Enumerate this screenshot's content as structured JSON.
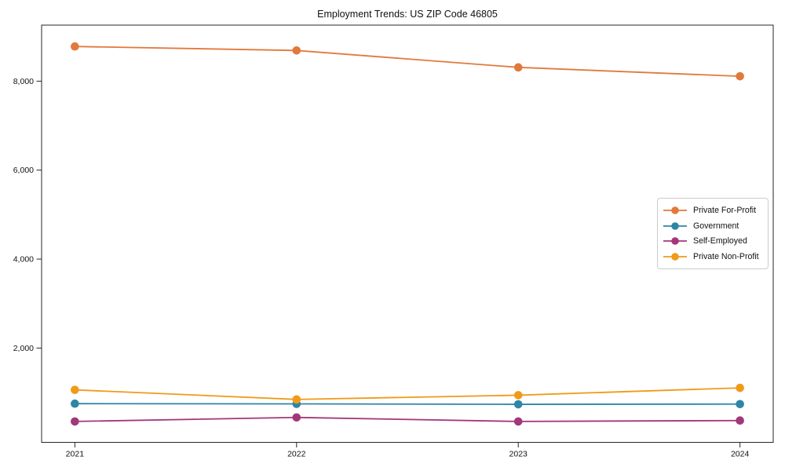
{
  "figure": {
    "title": "Employment Trends: US ZIP Code 46805"
  },
  "chart_data": {
    "type": "line",
    "title": "Employment Trends: US ZIP Code 46805",
    "xlabel": "",
    "ylabel": "",
    "categories": [
      "2021",
      "2022",
      "2023",
      "2024"
    ],
    "x": [
      2021,
      2022,
      2023,
      2024
    ],
    "series": [
      {
        "name": "Private For-Profit",
        "color": "#E2793C",
        "values": [
          8780,
          8690,
          8310,
          8110
        ]
      },
      {
        "name": "Government",
        "color": "#2F85A5",
        "values": [
          750,
          745,
          735,
          740
        ]
      },
      {
        "name": "Self-Employed",
        "color": "#A2377A",
        "values": [
          350,
          440,
          350,
          370
        ]
      },
      {
        "name": "Private Non-Profit",
        "color": "#F09A18",
        "values": [
          1060,
          845,
          940,
          1105
        ]
      }
    ],
    "xlim": [
      2020.85,
      2024.15
    ],
    "ylim": [
      -120,
      9260
    ],
    "yticks": [
      {
        "value": 2000,
        "label": "2,000"
      },
      {
        "value": 4000,
        "label": "4,000"
      },
      {
        "value": 6000,
        "label": "6,000"
      },
      {
        "value": 8000,
        "label": "8,000"
      }
    ],
    "grid": false,
    "frame": true,
    "marker": "circle",
    "legend_position": "center-right",
    "text_color": "#111111",
    "spine_color": "#262626",
    "legend_border_color": "#cccccc"
  }
}
